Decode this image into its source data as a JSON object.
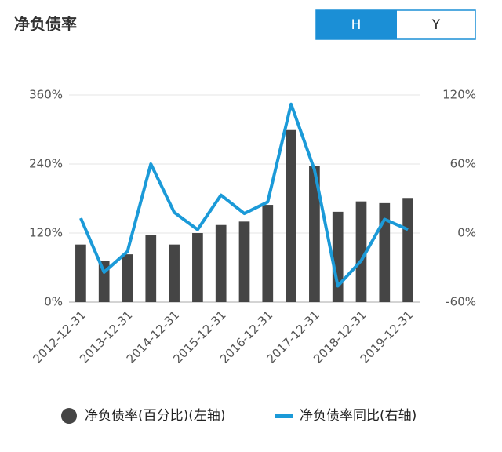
{
  "header": {
    "title": "净负债率",
    "tabs": [
      {
        "label": "H",
        "selected": true
      },
      {
        "label": "Y",
        "selected": false
      }
    ]
  },
  "chart_data": {
    "type": "bar_line",
    "categories": [
      "2012-12-31",
      null,
      "2013-12-31",
      null,
      "2014-12-31",
      null,
      "2015-12-31",
      null,
      "2016-12-31",
      null,
      "2017-12-31",
      null,
      "2018-12-31",
      null,
      "2019-12-31"
    ],
    "series": [
      {
        "name": "净负债率(百分比)(左轴)",
        "type": "bar",
        "color": "#454545",
        "values": [
          100,
          72,
          83,
          116,
          100,
          120,
          134,
          140,
          169,
          299,
          236,
          157,
          175,
          172,
          181
        ]
      },
      {
        "name": "净负债率同比(右轴)",
        "type": "line",
        "axis": "y2",
        "color": "#1b9ad8",
        "values": [
          13,
          -34,
          -16,
          60,
          18,
          3,
          33,
          17,
          27,
          112,
          55,
          -46,
          -24,
          12,
          3
        ]
      }
    ],
    "ylim": [
      0,
      360
    ],
    "yticks": [
      {
        "value": 0,
        "label": "0%"
      },
      {
        "value": 120,
        "label": "120%"
      },
      {
        "value": 240,
        "label": "240%"
      },
      {
        "value": 360,
        "label": "360%"
      }
    ],
    "y2lim": [
      -60,
      120
    ],
    "y2ticks": [
      {
        "value": -60,
        "label": "-60%"
      },
      {
        "value": 0,
        "label": "0%"
      },
      {
        "value": 60,
        "label": "60%"
      },
      {
        "value": 120,
        "label": "120%"
      }
    ],
    "grid": true
  }
}
